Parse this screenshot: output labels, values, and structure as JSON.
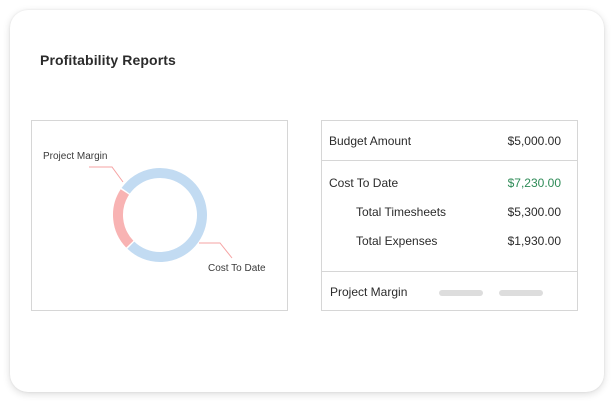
{
  "report": {
    "title": "Profitability Reports"
  },
  "chart_data": {
    "type": "pie",
    "categories": [
      "Project Margin",
      "Cost To Date"
    ],
    "values": [
      22,
      78
    ],
    "colors": [
      "#f8b3b3",
      "#c2dbf2"
    ],
    "title": "",
    "donut": true
  },
  "chart_labels": {
    "margin": "Project Margin",
    "cost": "Cost To Date"
  },
  "summary": {
    "budget_label": "Budget Amount",
    "budget_value": "$5,000.00",
    "cost_label": "Cost To Date",
    "cost_value": "$7,230.00",
    "cost_value_color": "#2e8b57",
    "timesheets_label": "Total Timesheets",
    "timesheets_value": "$5,300.00",
    "expenses_label": "Total Expenses",
    "expenses_value": "$1,930.00",
    "margin_label": "Project Margin"
  }
}
